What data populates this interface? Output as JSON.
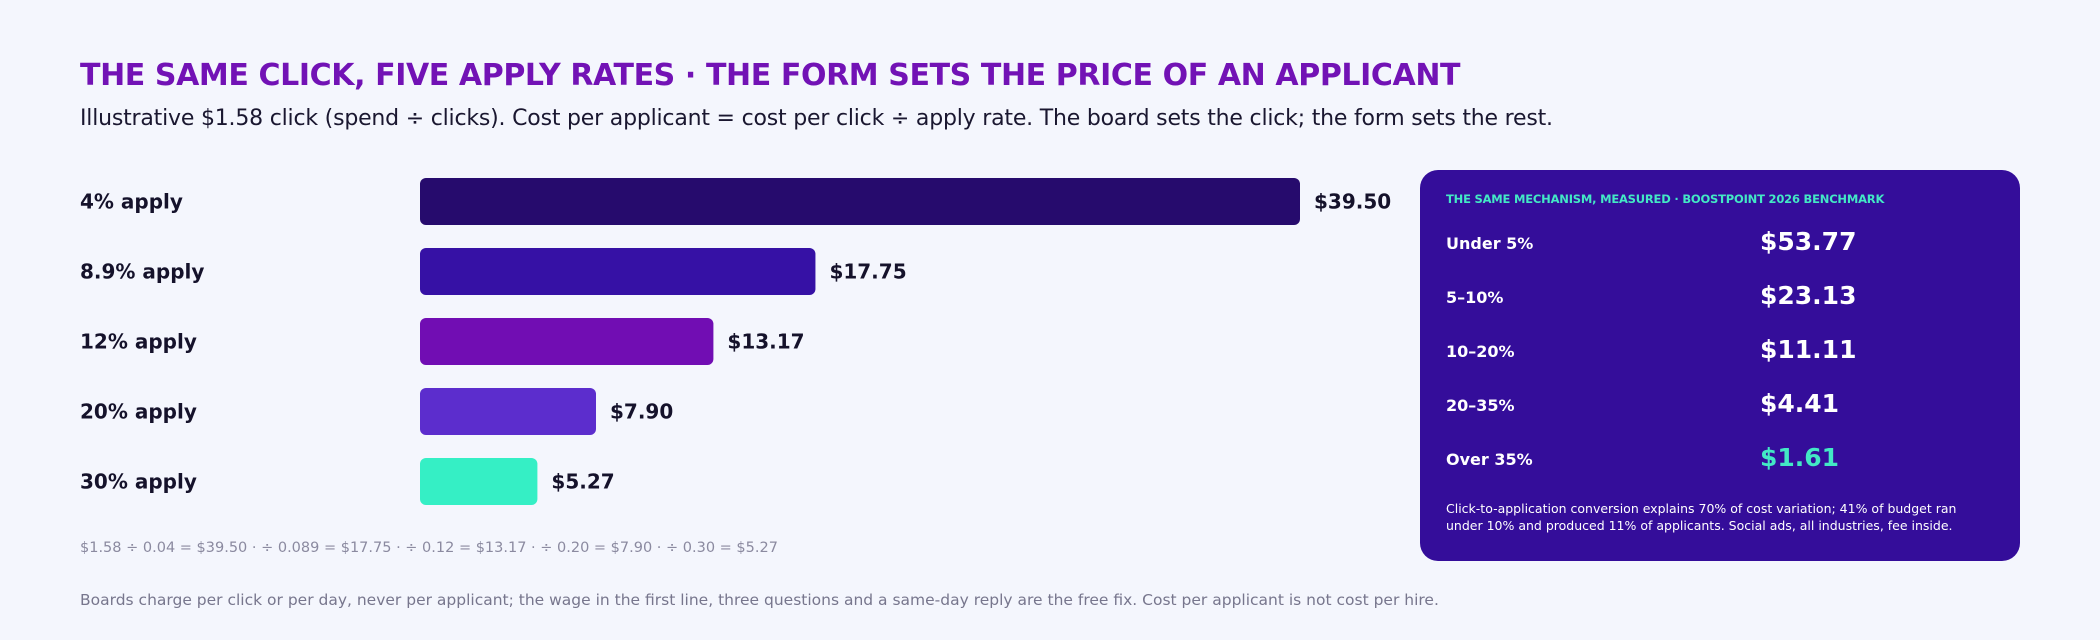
{
  "header": {
    "title": "THE SAME CLICK, FIVE APPLY RATES · THE FORM SETS THE PRICE OF AN APPLICANT",
    "subtitle": "Illustrative $1.58 click (spend ÷ clicks). Cost per applicant = cost per click ÷ apply rate. The board sets the click; the form sets the rest."
  },
  "chart_data": {
    "type": "bar",
    "orientation": "horizontal",
    "categories": [
      "4% apply",
      "8.9% apply",
      "12% apply",
      "20% apply",
      "30% apply"
    ],
    "values": [
      39.5,
      17.75,
      13.17,
      7.9,
      5.27
    ],
    "value_labels": [
      "$39.50",
      "$17.75",
      "$13.17",
      "$7.90",
      "$5.27"
    ],
    "colors": [
      "#260b6d",
      "#3611a5",
      "#710db3",
      "#5c2dcd",
      "#35efc5"
    ],
    "xlim": [
      0,
      39.5
    ],
    "grid": false
  },
  "formula": "$1.58 ÷ 0.04 = $39.50 · ÷ 0.089 = $17.75 · ÷ 0.12 = $13.17 · ÷ 0.20 = $7.90 · ÷ 0.30 = $5.27",
  "footnote": "Boards charge per click or per day, never per applicant; the wage in the first line, three questions and a same-day reply are the free fix. Cost per applicant is not cost per hire.",
  "panel": {
    "title": "THE SAME MECHANISM, MEASURED · BOOSTPOINT 2026 BENCHMARK",
    "rows": [
      {
        "label": "Under 5%",
        "value": "$53.77"
      },
      {
        "label": "5–10%",
        "value": "$23.13"
      },
      {
        "label": "10–20%",
        "value": "$11.11"
      },
      {
        "label": "20–35%",
        "value": "$4.41"
      },
      {
        "label": "Over 35%",
        "value": "$1.61"
      }
    ],
    "note": "Click-to-application conversion explains 70% of cost variation; 41% of budget ran under 10% and produced 11% of applicants. Social ads, all industries, fee inside.",
    "accent_color": "#43e8c5",
    "background_color": "#340d9a"
  }
}
